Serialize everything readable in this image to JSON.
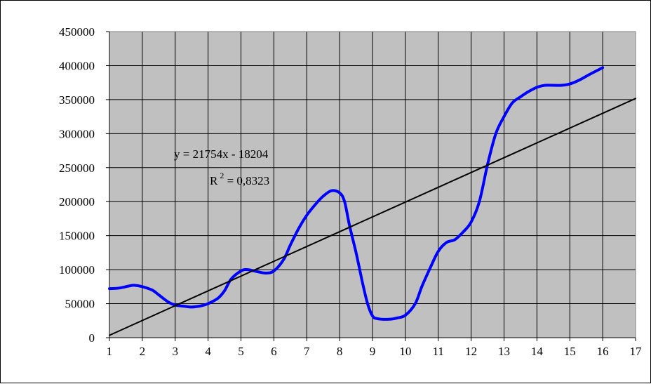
{
  "chart_data": {
    "type": "line",
    "title": "",
    "xlabel": "",
    "ylabel": "",
    "xlim": [
      1,
      17
    ],
    "ylim": [
      0,
      450000
    ],
    "grid": true,
    "plot_background": "#c0c0c0",
    "x_ticks": [
      "1",
      "2",
      "3",
      "4",
      "5",
      "6",
      "7",
      "8",
      "9",
      "10",
      "11",
      "12",
      "13",
      "14",
      "15",
      "16",
      "17"
    ],
    "y_ticks": [
      "0",
      "50000",
      "100000",
      "150000",
      "200000",
      "250000",
      "300000",
      "350000",
      "400000",
      "450000"
    ],
    "series": [
      {
        "color": "#0000ff",
        "points": [
          [
            1.0,
            72000
          ],
          [
            1.3,
            73000
          ],
          [
            1.6,
            76000
          ],
          [
            1.75,
            77000
          ],
          [
            2.0,
            75000
          ],
          [
            2.3,
            70000
          ],
          [
            2.5,
            63000
          ],
          [
            2.8,
            52000
          ],
          [
            3.0,
            48000
          ],
          [
            3.3,
            46000
          ],
          [
            3.5,
            45000
          ],
          [
            3.8,
            47000
          ],
          [
            4.0,
            50000
          ],
          [
            4.3,
            58000
          ],
          [
            4.5,
            69000
          ],
          [
            4.7,
            86000
          ],
          [
            5.0,
            98000
          ],
          [
            5.2,
            100000
          ],
          [
            5.5,
            97000
          ],
          [
            5.75,
            95000
          ],
          [
            6.0,
            98000
          ],
          [
            6.3,
            115000
          ],
          [
            6.5,
            136000
          ],
          [
            6.75,
            160000
          ],
          [
            7.0,
            180000
          ],
          [
            7.3,
            198000
          ],
          [
            7.5,
            208000
          ],
          [
            7.75,
            216000
          ],
          [
            8.0,
            213000
          ],
          [
            8.15,
            200000
          ],
          [
            8.3,
            165000
          ],
          [
            8.5,
            125000
          ],
          [
            8.7,
            80000
          ],
          [
            8.85,
            50000
          ],
          [
            9.0,
            32000
          ],
          [
            9.15,
            28000
          ],
          [
            9.5,
            27000
          ],
          [
            9.75,
            29000
          ],
          [
            10.0,
            33000
          ],
          [
            10.3,
            50000
          ],
          [
            10.5,
            75000
          ],
          [
            10.75,
            102000
          ],
          [
            11.0,
            127000
          ],
          [
            11.25,
            140000
          ],
          [
            11.5,
            144000
          ],
          [
            11.75,
            155000
          ],
          [
            12.0,
            170000
          ],
          [
            12.25,
            200000
          ],
          [
            12.5,
            255000
          ],
          [
            12.75,
            300000
          ],
          [
            13.0,
            325000
          ],
          [
            13.25,
            345000
          ],
          [
            13.5,
            354000
          ],
          [
            13.75,
            362000
          ],
          [
            14.0,
            368000
          ],
          [
            14.25,
            371000
          ],
          [
            14.75,
            371000
          ],
          [
            15.0,
            373000
          ],
          [
            15.3,
            379000
          ],
          [
            15.6,
            387000
          ],
          [
            16.0,
            397000
          ]
        ]
      },
      {
        "color": "#000000",
        "points": [
          [
            1,
            3550
          ],
          [
            17,
            351614
          ]
        ]
      }
    ],
    "annotations": [
      "y = 21754x - 18204",
      "R",
      "2",
      " = 0,8323"
    ]
  }
}
